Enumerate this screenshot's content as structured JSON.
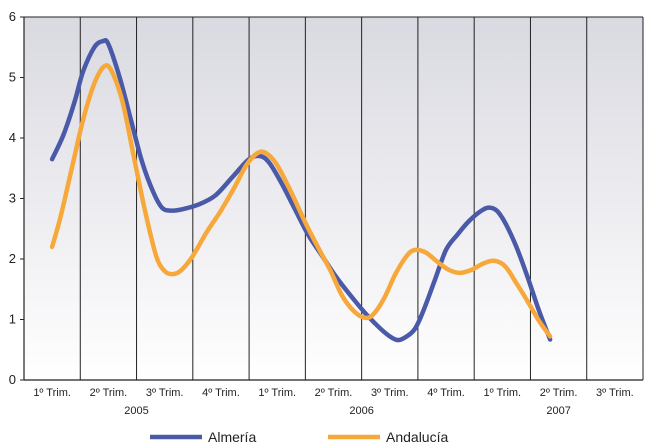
{
  "chart_data": {
    "type": "line",
    "categories": [
      "1º Trim.",
      "2º Trim.",
      "3º Trim.",
      "4º Trim.",
      "1º Trim.",
      "2º Trim.",
      "3º Trim.",
      "4º Trim.",
      "1º Trim.",
      "2º Trim.",
      "3º Trim."
    ],
    "years": [
      {
        "label": "2005",
        "span": [
          0,
          3
        ]
      },
      {
        "label": "2006",
        "span": [
          4,
          7
        ]
      },
      {
        "label": "2007",
        "span": [
          8,
          10
        ]
      }
    ],
    "ylim": [
      0,
      6
    ],
    "yticks": [
      "0",
      "1",
      "2",
      "3",
      "4",
      "5",
      "6"
    ],
    "grid": true,
    "legend_position": "bottom",
    "series": [
      {
        "name": "Almería",
        "color": "#4a5aa8",
        "points": [
          [
            0,
            3.65
          ],
          [
            0.2,
            4.05
          ],
          [
            0.4,
            4.6
          ],
          [
            0.55,
            5.1
          ],
          [
            0.75,
            5.5
          ],
          [
            0.9,
            5.6
          ],
          [
            1.0,
            5.55
          ],
          [
            1.2,
            5.0
          ],
          [
            1.4,
            4.3
          ],
          [
            1.6,
            3.6
          ],
          [
            1.8,
            3.1
          ],
          [
            1.95,
            2.85
          ],
          [
            2.1,
            2.8
          ],
          [
            2.3,
            2.82
          ],
          [
            2.6,
            2.9
          ],
          [
            2.9,
            3.05
          ],
          [
            3.2,
            3.35
          ],
          [
            3.5,
            3.65
          ],
          [
            3.7,
            3.7
          ],
          [
            3.85,
            3.6
          ],
          [
            4.05,
            3.3
          ],
          [
            4.3,
            2.85
          ],
          [
            4.55,
            2.4
          ],
          [
            4.8,
            2.05
          ],
          [
            5.05,
            1.7
          ],
          [
            5.3,
            1.4
          ],
          [
            5.55,
            1.12
          ],
          [
            5.8,
            0.88
          ],
          [
            6.0,
            0.72
          ],
          [
            6.15,
            0.66
          ],
          [
            6.3,
            0.72
          ],
          [
            6.45,
            0.85
          ],
          [
            6.6,
            1.15
          ],
          [
            6.8,
            1.65
          ],
          [
            7.0,
            2.15
          ],
          [
            7.2,
            2.4
          ],
          [
            7.4,
            2.62
          ],
          [
            7.6,
            2.78
          ],
          [
            7.75,
            2.85
          ],
          [
            7.9,
            2.8
          ],
          [
            8.05,
            2.6
          ],
          [
            8.25,
            2.2
          ],
          [
            8.45,
            1.7
          ],
          [
            8.65,
            1.15
          ],
          [
            8.85,
            0.67
          ]
        ]
      },
      {
        "name": "Andalucía",
        "color": "#f7a83a",
        "points": [
          [
            0,
            2.2
          ],
          [
            0.15,
            2.7
          ],
          [
            0.35,
            3.5
          ],
          [
            0.55,
            4.3
          ],
          [
            0.75,
            4.9
          ],
          [
            0.92,
            5.18
          ],
          [
            1.05,
            5.12
          ],
          [
            1.25,
            4.6
          ],
          [
            1.45,
            3.7
          ],
          [
            1.65,
            2.8
          ],
          [
            1.85,
            2.05
          ],
          [
            2.0,
            1.8
          ],
          [
            2.15,
            1.75
          ],
          [
            2.3,
            1.82
          ],
          [
            2.5,
            2.05
          ],
          [
            2.75,
            2.45
          ],
          [
            3.0,
            2.8
          ],
          [
            3.25,
            3.2
          ],
          [
            3.45,
            3.55
          ],
          [
            3.65,
            3.75
          ],
          [
            3.8,
            3.75
          ],
          [
            4.0,
            3.55
          ],
          [
            4.25,
            3.1
          ],
          [
            4.5,
            2.6
          ],
          [
            4.75,
            2.15
          ],
          [
            4.95,
            1.8
          ],
          [
            5.15,
            1.4
          ],
          [
            5.35,
            1.15
          ],
          [
            5.55,
            1.03
          ],
          [
            5.7,
            1.08
          ],
          [
            5.9,
            1.35
          ],
          [
            6.1,
            1.75
          ],
          [
            6.3,
            2.05
          ],
          [
            6.45,
            2.15
          ],
          [
            6.65,
            2.1
          ],
          [
            6.85,
            1.95
          ],
          [
            7.05,
            1.82
          ],
          [
            7.25,
            1.77
          ],
          [
            7.45,
            1.82
          ],
          [
            7.65,
            1.92
          ],
          [
            7.85,
            1.97
          ],
          [
            8.05,
            1.88
          ],
          [
            8.25,
            1.6
          ],
          [
            8.45,
            1.3
          ],
          [
            8.65,
            0.98
          ],
          [
            8.85,
            0.72
          ]
        ]
      }
    ]
  }
}
